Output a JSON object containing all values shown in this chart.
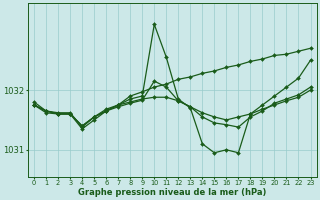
{
  "hours": [
    0,
    1,
    2,
    3,
    4,
    5,
    6,
    7,
    8,
    9,
    10,
    11,
    12,
    13,
    14,
    15,
    16,
    17,
    18,
    19,
    20,
    21,
    22,
    23
  ],
  "line_spike": [
    1031.75,
    1031.65,
    1031.6,
    1031.6,
    1031.4,
    1031.55,
    1031.65,
    1031.75,
    1031.85,
    1031.9,
    1033.1,
    1032.55,
    1031.85,
    1031.7,
    1031.1,
    1030.95,
    1031.0,
    1030.95,
    1031.6,
    1031.75,
    1031.9,
    1032.05,
    1032.2,
    1032.5
  ],
  "line_flat": [
    1031.75,
    1031.65,
    1031.6,
    1031.6,
    1031.4,
    1031.55,
    1031.65,
    1031.75,
    1031.8,
    1031.85,
    1031.88,
    1031.88,
    1031.82,
    1031.72,
    1031.62,
    1031.55,
    1031.5,
    1031.55,
    1031.6,
    1031.68,
    1031.75,
    1031.82,
    1031.88,
    1032.0
  ],
  "line_mid": [
    1031.75,
    1031.62,
    1031.6,
    1031.6,
    1031.35,
    1031.5,
    1031.65,
    1031.72,
    1031.78,
    1031.83,
    1032.15,
    1032.05,
    1031.82,
    1031.72,
    1031.55,
    1031.45,
    1031.42,
    1031.38,
    1031.55,
    1031.65,
    1031.78,
    1031.85,
    1031.92,
    1032.05
  ],
  "line_trend": [
    1031.8,
    1031.65,
    1031.62,
    1031.62,
    1031.38,
    1031.55,
    1031.68,
    1031.75,
    1031.9,
    1031.97,
    1032.05,
    1032.1,
    1032.18,
    1032.22,
    1032.28,
    1032.32,
    1032.38,
    1032.42,
    1032.48,
    1032.52,
    1032.58,
    1032.6,
    1032.65,
    1032.7
  ],
  "background_color": "#cce8e8",
  "grid_color": "#99cccc",
  "line_color": "#1a5c1a",
  "title": "Graphe pression niveau de la mer (hPa)",
  "ylim_min": 1030.55,
  "ylim_max": 1033.45,
  "yticks": [
    1031,
    1032
  ],
  "markersize": 2.0,
  "linewidth": 0.9
}
